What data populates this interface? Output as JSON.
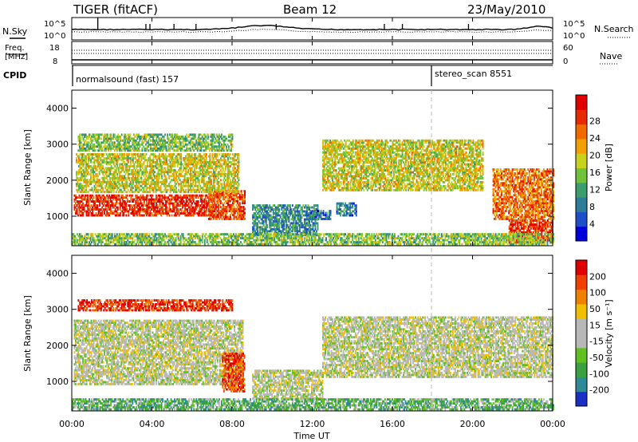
{
  "header": {
    "station": "TIGER (fitACF)",
    "beam": "Beam 12",
    "date": "23/May/2010"
  },
  "top_panels": {
    "nsky_label": "N.Sky",
    "nsearch_label": "N.Search",
    "noise_ticks": [
      "10^5",
      "10^0"
    ],
    "freq_label_1": "Freq.",
    "freq_label_2": "[MHz]",
    "freq_ticks": [
      "18",
      "8"
    ],
    "nave_label": "Nave",
    "nave_ticks": [
      "60",
      "0"
    ],
    "cpid_label": "CPID",
    "cpid_modes": [
      {
        "text": "normalsound (fast) 157",
        "start_hour": 0
      },
      {
        "text": "stereo_scan 8551",
        "start_hour": 18
      }
    ]
  },
  "x_ticks": [
    "00:00",
    "04:00",
    "08:00",
    "12:00",
    "16:00",
    "20:00",
    "00:00"
  ],
  "x_label": "Time UT",
  "chart_data": [
    {
      "type": "heatmap",
      "name": "Power",
      "ylabel": "Slant Range [km]",
      "ylim": [
        180,
        4500
      ],
      "yticks": [
        "1000",
        "2000",
        "3000",
        "4000"
      ],
      "xlim_hours": [
        0,
        24
      ],
      "colorbar_label": "Power [dB]",
      "colorbar_ticks": [
        "4",
        "8",
        "12",
        "16",
        "20",
        "24",
        "28"
      ],
      "colorbar_colors": [
        "#0000dd",
        "#1f4fc8",
        "#2e7c9a",
        "#3b9c6e",
        "#6fc23a",
        "#c8d21e",
        "#f2a000",
        "#f06a00",
        "#e82a00",
        "#e00000"
      ],
      "echo_regions": [
        {
          "t0": 0.1,
          "t1": 7.0,
          "r0": 1000,
          "r1": 1600,
          "level": 0.88
        },
        {
          "t0": 6.8,
          "t1": 8.6,
          "r0": 900,
          "r1": 1700,
          "level": 0.8
        },
        {
          "t0": 0.2,
          "t1": 8.3,
          "r0": 1650,
          "r1": 2700,
          "level": 0.55
        },
        {
          "t0": 0.3,
          "t1": 8.0,
          "r0": 2800,
          "r1": 3250,
          "level": 0.45
        },
        {
          "t0": 9.0,
          "t1": 12.3,
          "r0": 450,
          "r1": 1300,
          "level": 0.3
        },
        {
          "t0": 13.2,
          "t1": 14.2,
          "r0": 1000,
          "r1": 1350,
          "level": 0.25
        },
        {
          "t0": 11.8,
          "t1": 12.9,
          "r0": 900,
          "r1": 1150,
          "level": 0.25
        },
        {
          "t0": 12.5,
          "t1": 20.5,
          "r0": 1700,
          "r1": 3100,
          "level": 0.55
        },
        {
          "t0": 21.0,
          "t1": 24.0,
          "r0": 900,
          "r1": 2300,
          "level": 0.75
        },
        {
          "t0": 21.8,
          "t1": 24.0,
          "r0": 250,
          "r1": 900,
          "level": 0.85
        },
        {
          "t0": 0.0,
          "t1": 24.0,
          "r0": 200,
          "r1": 500,
          "level": 0.45
        }
      ]
    },
    {
      "type": "heatmap",
      "name": "Velocity",
      "ylabel": "Slant Range [km]",
      "ylim": [
        180,
        4500
      ],
      "yticks": [
        "1000",
        "2000",
        "3000",
        "4000"
      ],
      "xlim_hours": [
        0,
        24
      ],
      "colorbar_label": "Velocity [m s⁻¹]",
      "colorbar_ticks": [
        "200",
        "100",
        "50",
        "15",
        "-15",
        "-50",
        "-100",
        "-200"
      ],
      "colorbar_colors": [
        "#1a2fc8",
        "#2e8a96",
        "#3aa040",
        "#60c020",
        "#b8b8b8",
        "#b8b8b8",
        "#f0c000",
        "#f08000",
        "#f04000",
        "#e00000"
      ],
      "echo_regions": [
        {
          "t0": 0.1,
          "t1": 8.5,
          "r0": 900,
          "r1": 2700,
          "level": 0.5
        },
        {
          "t0": 7.5,
          "t1": 8.6,
          "r0": 700,
          "r1": 1800,
          "level": 0.85
        },
        {
          "t0": 9.0,
          "t1": 12.5,
          "r0": 500,
          "r1": 1300,
          "level": 0.5
        },
        {
          "t0": 12.5,
          "t1": 24.0,
          "r0": 1100,
          "r1": 2800,
          "level": 0.5
        },
        {
          "t0": 0.0,
          "t1": 24.0,
          "r0": 200,
          "r1": 500,
          "level": 0.3
        },
        {
          "t0": 0.3,
          "t1": 8.0,
          "r0": 2950,
          "r1": 3250,
          "level": 0.9
        }
      ]
    }
  ]
}
